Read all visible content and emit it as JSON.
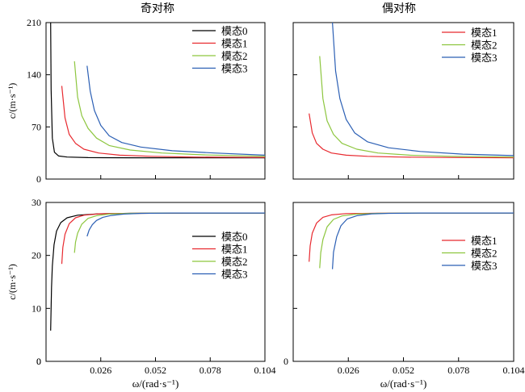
{
  "titles": {
    "left": "奇对称",
    "right": "偶对称"
  },
  "axis_labels": {
    "y_phase": "c/(m·s⁻¹)",
    "y_group": "c/(m·s⁻¹)",
    "x": "ω/(rad·s⁻¹)"
  },
  "x_ticks": [
    "0.026",
    "0.052",
    "0.078",
    "0.104"
  ],
  "chart_data": [
    {
      "type": "line",
      "panel": "top-left",
      "title": "奇对称",
      "xlabel": "",
      "ylabel": "c/(m·s⁻¹)",
      "xlim": [
        0,
        0.104
      ],
      "ylim": [
        0,
        210
      ],
      "xticks": [
        0.026,
        0.052,
        0.078,
        0.104
      ],
      "yticks": [
        0,
        70,
        140,
        210
      ],
      "legend": "top-right",
      "series": [
        {
          "name": "模态0",
          "color": "#000000",
          "x": [
            0.0022,
            0.0024,
            0.003,
            0.004,
            0.006,
            0.01,
            0.02,
            0.04,
            0.07,
            0.104
          ],
          "y": [
            210,
            120,
            55,
            36,
            31,
            29.5,
            28.8,
            28.6,
            28.5,
            28.5
          ]
        },
        {
          "name": "模态1",
          "color": "#e8292f",
          "x": [
            0.0075,
            0.009,
            0.011,
            0.014,
            0.018,
            0.025,
            0.035,
            0.05,
            0.07,
            0.104
          ],
          "y": [
            125,
            82,
            60,
            48,
            40,
            35,
            32,
            30.5,
            29.5,
            29
          ]
        },
        {
          "name": "模态2",
          "color": "#8dc63f",
          "x": [
            0.0135,
            0.015,
            0.017,
            0.02,
            0.024,
            0.03,
            0.04,
            0.055,
            0.075,
            0.104
          ],
          "y": [
            158,
            110,
            85,
            68,
            55,
            45,
            39,
            35,
            32.5,
            30.5
          ]
        },
        {
          "name": "模态3",
          "color": "#2b5fb4",
          "x": [
            0.0195,
            0.021,
            0.023,
            0.026,
            0.03,
            0.036,
            0.045,
            0.06,
            0.08,
            0.104
          ],
          "y": [
            152,
            118,
            92,
            72,
            58,
            49,
            43,
            38,
            35,
            32
          ]
        }
      ]
    },
    {
      "type": "line",
      "panel": "top-right",
      "title": "偶对称",
      "xlabel": "",
      "ylabel": "",
      "xlim": [
        0,
        0.104
      ],
      "ylim": [
        0,
        210
      ],
      "xticks": [
        0.026,
        0.052,
        0.078,
        0.104
      ],
      "yticks": [
        0,
        70,
        140,
        210
      ],
      "legend": "top-right",
      "series": [
        {
          "name": "模态1",
          "color": "#e8292f",
          "x": [
            0.0075,
            0.009,
            0.011,
            0.014,
            0.018,
            0.025,
            0.035,
            0.05,
            0.07,
            0.104
          ],
          "y": [
            88,
            62,
            48,
            40,
            35,
            32,
            30.5,
            29.5,
            29,
            28.5
          ]
        },
        {
          "name": "模态2",
          "color": "#8dc63f",
          "x": [
            0.0125,
            0.014,
            0.016,
            0.019,
            0.023,
            0.03,
            0.04,
            0.055,
            0.075,
            0.104
          ],
          "y": [
            165,
            108,
            78,
            60,
            48,
            40,
            35,
            32,
            30.5,
            29.5
          ]
        },
        {
          "name": "模态3",
          "color": "#2b5fb4",
          "x": [
            0.0185,
            0.02,
            0.022,
            0.025,
            0.029,
            0.035,
            0.045,
            0.06,
            0.08,
            0.104
          ],
          "y": [
            210,
            145,
            108,
            80,
            62,
            50,
            42,
            37,
            33.5,
            31.5
          ]
        }
      ]
    },
    {
      "type": "line",
      "panel": "bottom-left",
      "title": "",
      "xlabel": "ω/(rad·s⁻¹)",
      "ylabel": "c/(m·s⁻¹)",
      "xlim": [
        0,
        0.104
      ],
      "ylim": [
        0,
        30
      ],
      "xticks": [
        0.026,
        0.052,
        0.078,
        0.104
      ],
      "yticks": [
        0,
        10,
        20,
        30
      ],
      "legend": "center-right",
      "series": [
        {
          "name": "模态0",
          "color": "#000000",
          "x": [
            0.0022,
            0.0026,
            0.003,
            0.0038,
            0.005,
            0.007,
            0.01,
            0.015,
            0.025,
            0.04,
            0.07,
            0.104
          ],
          "y": [
            5.8,
            14,
            18,
            22,
            24.6,
            26.2,
            27.1,
            27.6,
            27.85,
            27.95,
            28,
            28
          ]
        },
        {
          "name": "模态1",
          "color": "#e8292f",
          "x": [
            0.0075,
            0.008,
            0.009,
            0.011,
            0.014,
            0.018,
            0.025,
            0.04,
            0.07,
            0.104
          ],
          "y": [
            18.4,
            21.5,
            24,
            26,
            27.1,
            27.6,
            27.85,
            27.95,
            28,
            28
          ]
        },
        {
          "name": "模态2",
          "color": "#8dc63f",
          "x": [
            0.0135,
            0.014,
            0.015,
            0.017,
            0.02,
            0.024,
            0.03,
            0.04,
            0.06,
            0.104
          ],
          "y": [
            20.5,
            22.5,
            24.2,
            25.9,
            27,
            27.5,
            27.8,
            27.95,
            28,
            28
          ]
        },
        {
          "name": "模态3",
          "color": "#2b5fb4",
          "x": [
            0.0195,
            0.0205,
            0.022,
            0.024,
            0.027,
            0.031,
            0.037,
            0.045,
            0.06,
            0.104
          ],
          "y": [
            23.6,
            24.8,
            25.8,
            26.6,
            27.2,
            27.55,
            27.8,
            27.95,
            28,
            28
          ]
        }
      ]
    },
    {
      "type": "line",
      "panel": "bottom-right",
      "title": "",
      "xlabel": "ω/(rad·s⁻¹)",
      "ylabel": "",
      "xlim": [
        0,
        0.104
      ],
      "ylim": [
        0,
        30
      ],
      "xticks": [
        0.026,
        0.052,
        0.078,
        0.104
      ],
      "yticks": [
        0,
        10,
        20,
        30
      ],
      "legend": "center-right",
      "series": [
        {
          "name": "模态1",
          "color": "#e8292f",
          "x": [
            0.0075,
            0.008,
            0.009,
            0.011,
            0.014,
            0.018,
            0.025,
            0.04,
            0.07,
            0.104
          ],
          "y": [
            18.8,
            21.8,
            24.2,
            26.1,
            27.2,
            27.65,
            27.9,
            27.97,
            28,
            28
          ]
        },
        {
          "name": "模态2",
          "color": "#8dc63f",
          "x": [
            0.0125,
            0.013,
            0.014,
            0.016,
            0.019,
            0.023,
            0.03,
            0.04,
            0.06,
            0.104
          ],
          "y": [
            17.6,
            20.5,
            23,
            25.4,
            26.8,
            27.45,
            27.8,
            27.95,
            28,
            28
          ]
        },
        {
          "name": "模态3",
          "color": "#2b5fb4",
          "x": [
            0.0185,
            0.019,
            0.0205,
            0.0225,
            0.0255,
            0.03,
            0.037,
            0.045,
            0.06,
            0.104
          ],
          "y": [
            17.4,
            20.6,
            23.5,
            25.6,
            26.9,
            27.5,
            27.85,
            27.95,
            28,
            28
          ]
        }
      ]
    }
  ]
}
